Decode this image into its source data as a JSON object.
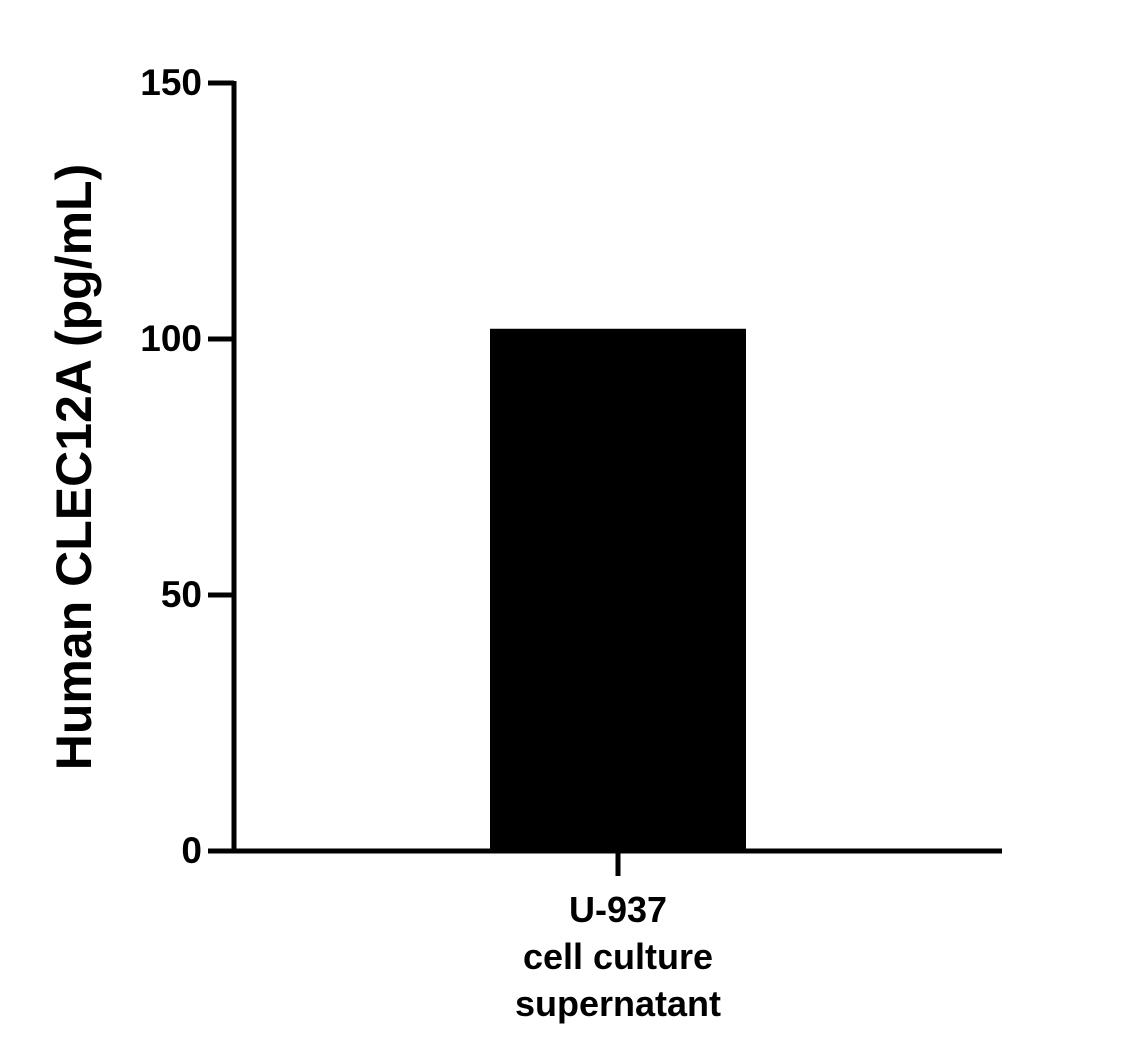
{
  "chart_data": {
    "type": "bar",
    "y_label": "Human CLEC12A (pg/mL)",
    "categories": [
      "U-937\ncell culture\nsupernatant"
    ],
    "values": [
      102
    ],
    "color": "#000000",
    "ylim": [
      0,
      150
    ],
    "yticks": [
      0,
      50,
      100,
      150
    ]
  }
}
